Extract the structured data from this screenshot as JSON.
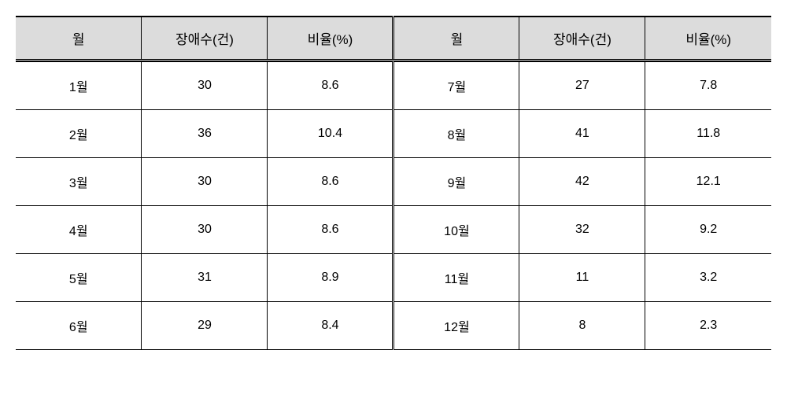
{
  "table": {
    "type": "table",
    "background_color": "#ffffff",
    "header_background": "#dcdcdc",
    "border_color": "#000000",
    "text_color": "#000000",
    "header_fontsize": 17,
    "cell_fontsize": 16,
    "border_top_width": 2,
    "cell_padding_vertical": 18,
    "header_padding_vertical": 14,
    "columns": [
      {
        "label": "월",
        "width_pct": 16.66
      },
      {
        "label": "장애수(건)",
        "width_pct": 16.66
      },
      {
        "label": "비율(%)",
        "width_pct": 16.66
      },
      {
        "label": "월",
        "width_pct": 16.66
      },
      {
        "label": "장애수(건)",
        "width_pct": 16.66
      },
      {
        "label": "비율(%)",
        "width_pct": 16.66
      }
    ],
    "rows": [
      {
        "left": {
          "month": "1월",
          "count": "30",
          "ratio": "8.6"
        },
        "right": {
          "month": "7월",
          "count": "27",
          "ratio": "7.8"
        }
      },
      {
        "left": {
          "month": "2월",
          "count": "36",
          "ratio": "10.4"
        },
        "right": {
          "month": "8월",
          "count": "41",
          "ratio": "11.8"
        }
      },
      {
        "left": {
          "month": "3월",
          "count": "30",
          "ratio": "8.6"
        },
        "right": {
          "month": "9월",
          "count": "42",
          "ratio": "12.1"
        }
      },
      {
        "left": {
          "month": "4월",
          "count": "30",
          "ratio": "8.6"
        },
        "right": {
          "month": "10월",
          "count": "32",
          "ratio": "9.2"
        }
      },
      {
        "left": {
          "month": "5월",
          "count": "31",
          "ratio": "8.9"
        },
        "right": {
          "month": "11월",
          "count": "11",
          "ratio": "3.2"
        }
      },
      {
        "left": {
          "month": "6월",
          "count": "29",
          "ratio": "8.4"
        },
        "right": {
          "month": "12월",
          "count": "8",
          "ratio": "2.3"
        }
      }
    ]
  }
}
